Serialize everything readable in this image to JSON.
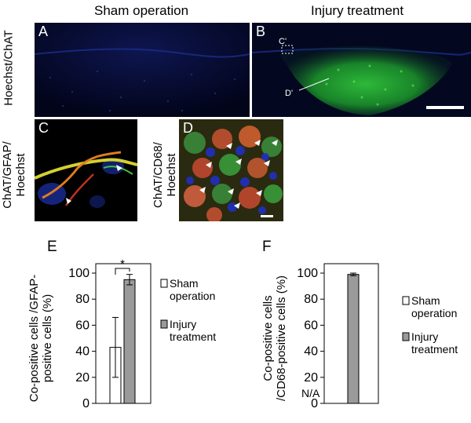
{
  "headers": {
    "sham": "Sham operation",
    "injury": "Injury treatment"
  },
  "row_labels": {
    "top": "Hoechst/ChAT",
    "c_line1": "ChAT/GFAP/",
    "c_line2": "Hoechst",
    "d_line1": "ChAT/CD68/",
    "d_line2": "Hoechst"
  },
  "panels": {
    "A": "A",
    "B": "B",
    "C": "C",
    "D": "D",
    "c_prime": "C'",
    "d_prime": "D'"
  },
  "chart_data": [
    {
      "type": "bar",
      "panel": "E",
      "ylabel_line1": "Co-positive cells /GFAP-",
      "ylabel_line2": "positive cells (%)",
      "ylim": [
        0,
        100
      ],
      "yticks": [
        "0",
        "20",
        "40",
        "60",
        "80",
        "100"
      ],
      "significance": "*",
      "series": [
        {
          "name": "Sham operation",
          "value": 43,
          "error": 23,
          "color": "#ffffff"
        },
        {
          "name": "Injury treatment",
          "value": 95,
          "error": 4,
          "color": "#9a9a9a"
        }
      ],
      "legend": [
        {
          "line1": "Sham",
          "line2": "operation"
        },
        {
          "line1": "Injury",
          "line2": "treatment"
        }
      ]
    },
    {
      "type": "bar",
      "panel": "F",
      "ylabel_line1": "Co-positive cells",
      "ylabel_line2": "/CD68-positive cells (%)",
      "ylim": [
        0,
        100
      ],
      "yticks": [
        "0",
        "20",
        "40",
        "60",
        "80",
        "100"
      ],
      "na_label": "N/A",
      "series": [
        {
          "name": "Sham operation",
          "value": null,
          "color": "#ffffff"
        },
        {
          "name": "Injury treatment",
          "value": 99,
          "error": 1,
          "color": "#9a9a9a"
        }
      ],
      "legend": [
        {
          "line1": "Sham",
          "line2": "operation"
        },
        {
          "line1": "Injury",
          "line2": "treatment"
        }
      ]
    }
  ]
}
